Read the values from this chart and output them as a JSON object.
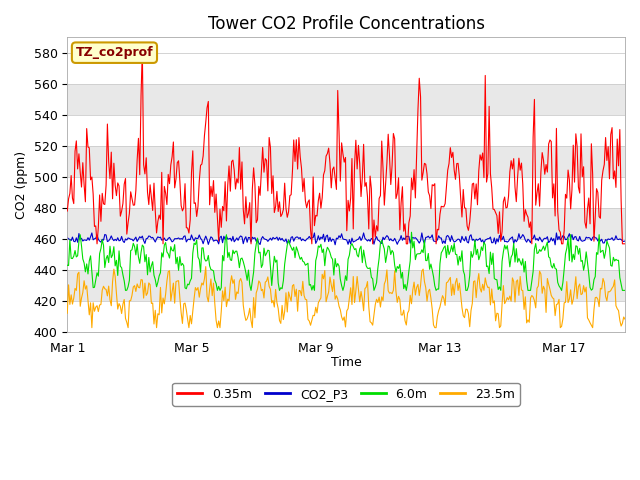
{
  "title": "Tower CO2 Profile Concentrations",
  "xlabel": "Time",
  "ylabel": "CO2 (ppm)",
  "ylim": [
    400,
    590
  ],
  "yticks": [
    400,
    420,
    440,
    460,
    480,
    500,
    520,
    540,
    560,
    580
  ],
  "xtick_labels": [
    "Mar 1",
    "Mar 5",
    "Mar 9",
    "Mar 13",
    "Mar 17"
  ],
  "xtick_positions": [
    0,
    96,
    192,
    288,
    384
  ],
  "n_points": 432,
  "series_colors": {
    "0.35m": "#ff0000",
    "CO2_P3": "#0000cc",
    "6.0m": "#00dd00",
    "23.5m": "#ffaa00"
  },
  "legend_labels": [
    "0.35m",
    "CO2_P3",
    "6.0m",
    "23.5m"
  ],
  "legend_colors": [
    "#ff0000",
    "#0000cc",
    "#00dd00",
    "#ffaa00"
  ],
  "watermark_text": "TZ_co2prof",
  "watermark_text_color": "#880000",
  "watermark_bg": "#ffffcc",
  "watermark_border": "#cc9900",
  "background_color": "#ffffff",
  "plot_bg_color": "#ffffff",
  "band_color": "#e8e8e8",
  "title_fontsize": 12,
  "axis_label_fontsize": 9,
  "tick_fontsize": 9,
  "linewidth": 0.8
}
